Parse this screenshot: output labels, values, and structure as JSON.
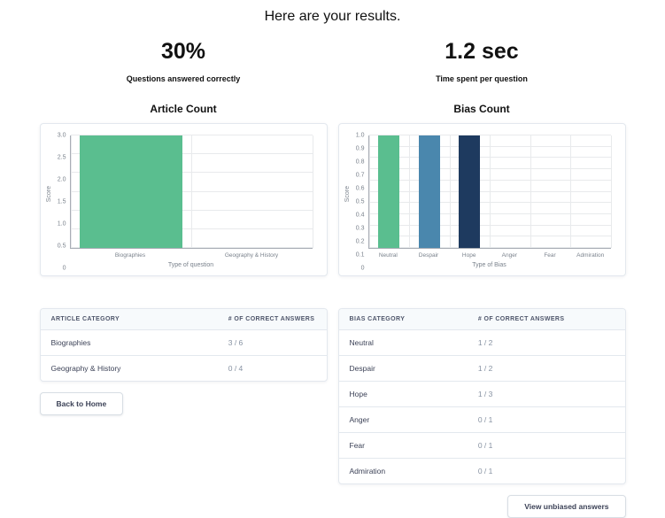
{
  "page": {
    "title": "Here are your results."
  },
  "stats": [
    {
      "value": "30%",
      "label": "Questions answered correctly"
    },
    {
      "value": "1.2 sec",
      "label": "Time spent per question"
    }
  ],
  "chart_data": [
    {
      "type": "bar",
      "title": "Article Count",
      "categories": [
        "Biographies",
        "Geography & History"
      ],
      "values": [
        3,
        0
      ],
      "bar_colors": [
        "#5abe8f",
        "#5abe8f"
      ],
      "xlabel": "Type of question",
      "ylabel": "Score",
      "ylim": [
        0,
        3
      ],
      "yticks": [
        0,
        0.5,
        1.0,
        1.5,
        2.0,
        2.5,
        3.0
      ],
      "grid": true,
      "legend": false
    },
    {
      "type": "bar",
      "title": "Bias Count",
      "categories": [
        "Neutral",
        "Despair",
        "Hope",
        "Anger",
        "Fear",
        "Admiration"
      ],
      "values": [
        1,
        1,
        1,
        0,
        0,
        0
      ],
      "bar_colors": [
        "#5abe8f",
        "#4a87ad",
        "#1e3a5f",
        "#5abe8f",
        "#5abe8f",
        "#5abe8f"
      ],
      "xlabel": "Type of Bias",
      "ylabel": "Score",
      "ylim": [
        0,
        1
      ],
      "yticks": [
        0,
        0.1,
        0.2,
        0.3,
        0.4,
        0.5,
        0.6,
        0.7,
        0.8,
        0.9,
        1.0
      ],
      "grid": true,
      "legend": false
    }
  ],
  "tables": [
    {
      "headers": [
        "ARTICLE CATEGORY",
        "# OF CORRECT ANSWERS"
      ],
      "rows": [
        [
          "Biographies",
          "3 / 6"
        ],
        [
          "Geography & History",
          "0 / 4"
        ]
      ]
    },
    {
      "headers": [
        "BIAS CATEGORY",
        "# OF CORRECT ANSWERS"
      ],
      "rows": [
        [
          "Neutral",
          "1 / 2"
        ],
        [
          "Despair",
          "1 / 2"
        ],
        [
          "Hope",
          "1 / 3"
        ],
        [
          "Anger",
          "0 / 1"
        ],
        [
          "Fear",
          "0 / 1"
        ],
        [
          "Admiration",
          "0 / 1"
        ]
      ]
    }
  ],
  "buttons": {
    "back_home": "Back to Home",
    "view_unbiased": "View unbiased answers"
  }
}
